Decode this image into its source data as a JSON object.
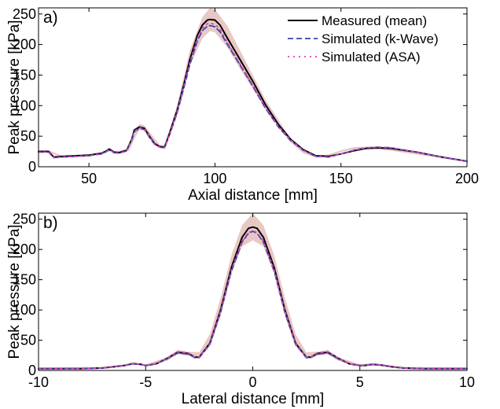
{
  "chart_data": [
    {
      "type": "line",
      "panel_label": "a)",
      "xlabel": "Axial distance [mm]",
      "ylabel": "Peak pressure [kPa]",
      "xlim": [
        30,
        200
      ],
      "ylim": [
        0,
        260
      ],
      "xticks": [
        50,
        100,
        150,
        200
      ],
      "yticks": [
        0,
        50,
        100,
        150,
        200,
        250
      ],
      "legend_position": "top-right",
      "band": {
        "name": "Measured range",
        "color": "#e8c8c4",
        "x": [
          30,
          34,
          40,
          50,
          56,
          58,
          60,
          66,
          68,
          70,
          72,
          75,
          78,
          80,
          85,
          90,
          95,
          98,
          100,
          105,
          110,
          120,
          130,
          135,
          140,
          145,
          150,
          155,
          160,
          170,
          180,
          190,
          200
        ],
        "upper": [
          27,
          27,
          17,
          20,
          24,
          31,
          25,
          29,
          52,
          70,
          68,
          52,
          36,
          35,
          100,
          190,
          245,
          260,
          258,
          230,
          190,
          110,
          46,
          26,
          18,
          20,
          27,
          32,
          33,
          29,
          23,
          16,
          10
        ],
        "lower": [
          23,
          23,
          15,
          18,
          22,
          27,
          22,
          26,
          45,
          60,
          60,
          45,
          31,
          30,
          85,
          165,
          210,
          222,
          220,
          195,
          160,
          95,
          40,
          22,
          15,
          17,
          24,
          29,
          30,
          26,
          20,
          14,
          8
        ]
      },
      "series": [
        {
          "name": "Measured (mean)",
          "color": "#000000",
          "style": "solid",
          "x": [
            30,
            34,
            36,
            40,
            45,
            50,
            55,
            57,
            58,
            60,
            62,
            65,
            67,
            68,
            70,
            72,
            74,
            76,
            78,
            80,
            82,
            85,
            88,
            90,
            93,
            95,
            97,
            98,
            100,
            102,
            105,
            110,
            115,
            120,
            125,
            130,
            135,
            140,
            145,
            150,
            155,
            160,
            165,
            170,
            180,
            190,
            200
          ],
          "y": [
            25,
            25,
            16,
            17,
            18,
            19,
            22,
            26,
            29,
            24,
            23,
            27,
            45,
            60,
            65,
            63,
            50,
            38,
            33,
            32,
            55,
            92,
            140,
            175,
            215,
            232,
            240,
            241,
            240,
            232,
            210,
            175,
            140,
            102,
            70,
            45,
            28,
            18,
            17,
            21,
            26,
            30,
            31,
            30,
            24,
            16,
            9
          ]
        },
        {
          "name": "Simulated (k-Wave)",
          "color": "#3344aa",
          "style": "dashed",
          "x": [
            30,
            34,
            36,
            40,
            45,
            50,
            55,
            57,
            58,
            60,
            62,
            65,
            67,
            68,
            70,
            72,
            74,
            76,
            78,
            80,
            82,
            85,
            88,
            90,
            93,
            95,
            97,
            98,
            100,
            102,
            105,
            110,
            115,
            120,
            125,
            130,
            135,
            140,
            145,
            150,
            155,
            160,
            165,
            170,
            180,
            190,
            200
          ],
          "y": [
            24,
            24,
            15,
            16,
            17,
            18,
            21,
            25,
            27,
            23,
            22,
            26,
            43,
            57,
            63,
            61,
            48,
            37,
            32,
            31,
            52,
            88,
            134,
            167,
            206,
            223,
            230,
            231,
            229,
            221,
            200,
            166,
            132,
            96,
            66,
            43,
            27,
            17,
            16,
            21,
            27,
            31,
            32,
            31,
            24,
            16,
            9
          ]
        },
        {
          "name": "Simulated (ASA)",
          "color": "#dd44aa",
          "style": "dotted",
          "x": [
            30,
            34,
            36,
            40,
            45,
            50,
            55,
            57,
            58,
            60,
            62,
            65,
            67,
            68,
            70,
            72,
            74,
            76,
            78,
            80,
            82,
            85,
            88,
            90,
            93,
            95,
            97,
            98,
            100,
            102,
            105,
            110,
            115,
            120,
            125,
            130,
            135,
            140,
            145,
            150,
            155,
            160,
            165,
            170,
            180,
            190,
            200
          ],
          "y": [
            24,
            24,
            15,
            16,
            17,
            18,
            21,
            25,
            28,
            23,
            22,
            26,
            44,
            58,
            64,
            62,
            49,
            37,
            32,
            31,
            53,
            90,
            137,
            170,
            210,
            227,
            234,
            235,
            233,
            225,
            203,
            168,
            134,
            98,
            67,
            44,
            27,
            17,
            16,
            21,
            27,
            31,
            32,
            31,
            24,
            16,
            9
          ]
        }
      ]
    },
    {
      "type": "line",
      "panel_label": "b)",
      "xlabel": "Lateral distance [mm]",
      "ylabel": "Peak pressure [kPa]",
      "xlim": [
        -10,
        10
      ],
      "ylim": [
        0,
        260
      ],
      "xticks": [
        -10,
        -5,
        0,
        5,
        10
      ],
      "yticks": [
        0,
        50,
        100,
        150,
        200,
        250
      ],
      "band": {
        "name": "Measured range",
        "color": "#e8c8c4",
        "x": [
          -10,
          -7,
          -6,
          -5.6,
          -5,
          -4,
          -3.5,
          -3,
          -2.5,
          -2,
          -1.5,
          -1,
          -0.5,
          0,
          0.5,
          1,
          1.5,
          2,
          2.5,
          3,
          3.5,
          4,
          5,
          5.6,
          6,
          7,
          10
        ],
        "upper": [
          5,
          6,
          10,
          14,
          10,
          22,
          34,
          31,
          30,
          60,
          120,
          190,
          240,
          260,
          240,
          190,
          120,
          60,
          30,
          31,
          34,
          22,
          10,
          12,
          10,
          6,
          5
        ],
        "lower": [
          2,
          3,
          7,
          10,
          7,
          16,
          27,
          24,
          22,
          40,
          90,
          160,
          205,
          215,
          205,
          160,
          90,
          40,
          22,
          24,
          27,
          16,
          7,
          8,
          7,
          3,
          2
        ]
      },
      "series": [
        {
          "name": "Measured (mean)",
          "color": "#000000",
          "style": "solid",
          "x": [
            -10,
            -8,
            -7,
            -6.5,
            -6,
            -5.6,
            -5.2,
            -5,
            -4.5,
            -4,
            -3.5,
            -3,
            -2.7,
            -2.5,
            -2,
            -1.5,
            -1,
            -0.5,
            -0.2,
            0,
            0.2,
            0.5,
            1,
            1.5,
            2,
            2.5,
            2.7,
            3,
            3.5,
            4,
            4.5,
            5,
            5.2,
            5.6,
            6,
            6.5,
            7,
            8,
            10
          ],
          "y": [
            3,
            3,
            4,
            6,
            8,
            11,
            10,
            8,
            11,
            20,
            30,
            28,
            22,
            22,
            45,
            100,
            170,
            220,
            235,
            237,
            235,
            220,
            170,
            100,
            45,
            22,
            22,
            28,
            30,
            20,
            11,
            8,
            8,
            10,
            9,
            6,
            4,
            3,
            3
          ]
        },
        {
          "name": "Simulated (k-Wave)",
          "color": "#3344aa",
          "style": "dashed",
          "x": [
            -10,
            -8,
            -7,
            -6.5,
            -6,
            -5.6,
            -5.2,
            -5,
            -4.5,
            -4,
            -3.5,
            -3,
            -2.7,
            -2.5,
            -2,
            -1.5,
            -1,
            -0.5,
            -0.2,
            0,
            0.2,
            0.5,
            1,
            1.5,
            2,
            2.5,
            2.7,
            3,
            3.5,
            4,
            4.5,
            5,
            5.2,
            5.6,
            6,
            6.5,
            7,
            8,
            10
          ],
          "y": [
            3,
            3,
            4,
            6,
            8,
            11,
            10,
            8,
            11,
            19,
            29,
            27,
            21,
            21,
            43,
            96,
            164,
            212,
            227,
            230,
            227,
            212,
            164,
            96,
            43,
            21,
            21,
            27,
            29,
            19,
            11,
            8,
            8,
            10,
            9,
            6,
            4,
            3,
            3
          ]
        },
        {
          "name": "Simulated (ASA)",
          "color": "#dd44aa",
          "style": "dotted",
          "x": [
            -10,
            -8,
            -7,
            -6.5,
            -6,
            -5.6,
            -5.2,
            -5,
            -4.5,
            -4,
            -3.5,
            -3,
            -2.7,
            -2.5,
            -2,
            -1.5,
            -1,
            -0.5,
            -0.2,
            0,
            0.2,
            0.5,
            1,
            1.5,
            2,
            2.5,
            2.7,
            3,
            3.5,
            4,
            4.5,
            5,
            5.2,
            5.6,
            6,
            6.5,
            7,
            8,
            10
          ],
          "y": [
            3,
            3,
            4,
            6,
            8,
            11,
            10,
            8,
            11,
            20,
            31,
            29,
            22,
            22,
            44,
            98,
            166,
            214,
            228,
            231,
            228,
            214,
            166,
            98,
            44,
            22,
            22,
            29,
            31,
            20,
            11,
            8,
            8,
            10,
            9,
            6,
            4,
            3,
            3
          ]
        }
      ]
    }
  ]
}
